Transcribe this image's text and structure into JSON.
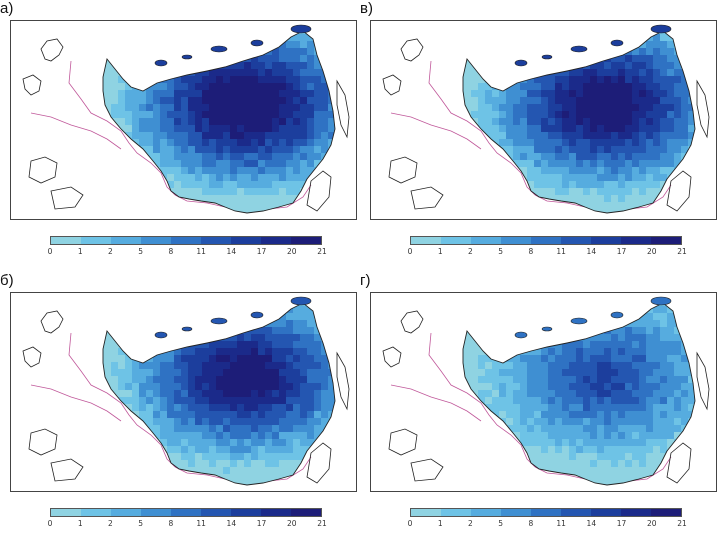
{
  "panels": [
    {
      "label": "а)",
      "intensity": 1.0
    },
    {
      "label": "в)",
      "intensity": 0.95
    },
    {
      "label": "б)",
      "intensity": 0.9
    },
    {
      "label": "г)",
      "intensity": 0.6
    }
  ],
  "legend": {
    "ticks": [
      "0",
      "1",
      "2",
      "5",
      "8",
      "11",
      "14",
      "17",
      "20",
      "21"
    ],
    "colors": [
      "#8fd3e2",
      "#6ec3e6",
      "#56acdf",
      "#3f8fd2",
      "#2f72c3",
      "#2456b1",
      "#1c3e9d",
      "#1b2a8a",
      "#1d1d78"
    ]
  },
  "colors": {
    "border_line": "#222222",
    "political_border": "#c0589a"
  }
}
